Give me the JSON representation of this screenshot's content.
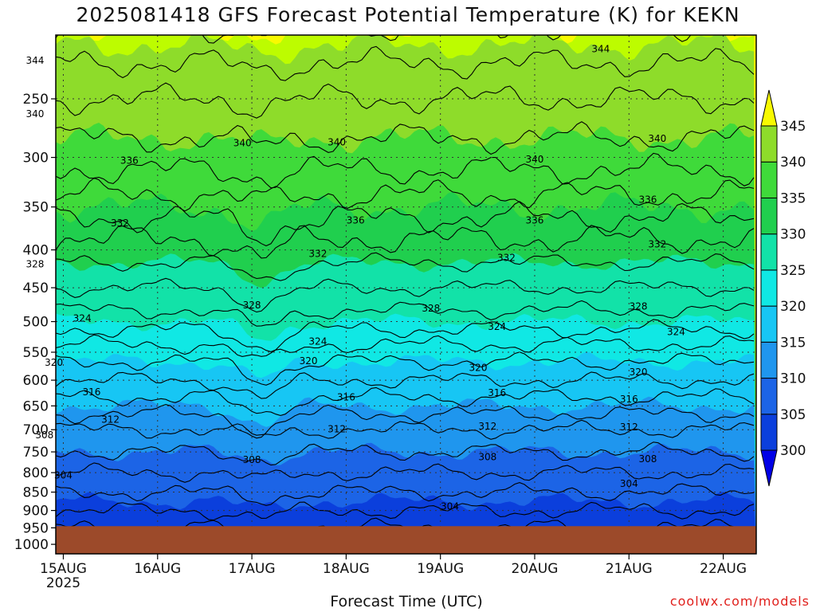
{
  "title": "2025081418 GFS Forecast Potential Temperature (K) for KEKN",
  "credit": "coolwx.com/models",
  "chart_data": {
    "type": "heatmap",
    "title": "2025081418 GFS Forecast Potential Temperature (K) for KEKN",
    "xlabel": "Forecast Time (UTC)",
    "ylabel": "",
    "y_scale": "log",
    "y_reversed": true,
    "ylim": [
      1030,
      205
    ],
    "y_ticks": [
      250,
      300,
      350,
      400,
      450,
      500,
      550,
      600,
      650,
      700,
      750,
      800,
      850,
      900,
      950,
      1000
    ],
    "x_ticks": [
      {
        "label": "15AUG",
        "sublabel": "2025",
        "day": 0
      },
      {
        "label": "16AUG",
        "sublabel": "",
        "day": 1
      },
      {
        "label": "17AUG",
        "sublabel": "",
        "day": 2
      },
      {
        "label": "18AUG",
        "sublabel": "",
        "day": 3
      },
      {
        "label": "19AUG",
        "sublabel": "",
        "day": 4
      },
      {
        "label": "20AUG",
        "sublabel": "",
        "day": 5
      },
      {
        "label": "21AUG",
        "sublabel": "",
        "day": 6
      },
      {
        "label": "22AUG",
        "sublabel": "",
        "day": 7
      }
    ],
    "xlim_days": [
      -0.08,
      7.35
    ],
    "ground_pressure": 945,
    "ground_color": "#9c4a2a",
    "grid": true,
    "colorbar": {
      "levels": [
        300,
        305,
        310,
        315,
        320,
        325,
        330,
        335,
        340,
        345
      ],
      "colors": [
        "#0000e6",
        "#0b3fdc",
        "#1c64e6",
        "#1f96ee",
        "#17c6f4",
        "#10e8e4",
        "#12e2a8",
        "#20cf4e",
        "#3fda3a",
        "#8edc2a",
        "#bdfc00",
        "#f8fa00"
      ],
      "under_color": "#0000e6",
      "over_color": "#f8fa00"
    },
    "isotherm_interval": 2,
    "level_profile": [
      {
        "p": 1000,
        "theta": 301
      },
      {
        "p": 950,
        "theta": 302
      },
      {
        "p": 900,
        "theta": 304
      },
      {
        "p": 850,
        "theta": 306
      },
      {
        "p": 800,
        "theta": 308
      },
      {
        "p": 750,
        "theta": 310
      },
      {
        "p": 700,
        "theta": 312
      },
      {
        "p": 650,
        "theta": 315
      },
      {
        "p": 600,
        "theta": 318
      },
      {
        "p": 550,
        "theta": 321
      },
      {
        "p": 500,
        "theta": 325
      },
      {
        "p": 450,
        "theta": 328
      },
      {
        "p": 400,
        "theta": 331
      },
      {
        "p": 350,
        "theta": 335
      },
      {
        "p": 300,
        "theta": 339
      },
      {
        "p": 250,
        "theta": 342
      },
      {
        "p": 200,
        "theta": 346
      }
    ],
    "contour_labels": [
      {
        "text": "344",
        "day": -0.3,
        "p": 222
      },
      {
        "text": "344",
        "day": 5.7,
        "p": 214
      },
      {
        "text": "340",
        "day": -0.3,
        "p": 262
      },
      {
        "text": "340",
        "day": 1.9,
        "p": 287
      },
      {
        "text": "340",
        "day": 2.9,
        "p": 286
      },
      {
        "text": "340",
        "day": 5.0,
        "p": 302
      },
      {
        "text": "340",
        "day": 6.3,
        "p": 283
      },
      {
        "text": "336",
        "day": 0.7,
        "p": 303
      },
      {
        "text": "336",
        "day": 3.1,
        "p": 365
      },
      {
        "text": "336",
        "day": 5.0,
        "p": 365
      },
      {
        "text": "336",
        "day": 6.2,
        "p": 342
      },
      {
        "text": "332",
        "day": 0.6,
        "p": 368
      },
      {
        "text": "332",
        "day": 2.7,
        "p": 405
      },
      {
        "text": "332",
        "day": 4.7,
        "p": 410
      },
      {
        "text": "332",
        "day": 6.3,
        "p": 393
      },
      {
        "text": "328",
        "day": -0.3,
        "p": 418
      },
      {
        "text": "328",
        "day": 2.0,
        "p": 475
      },
      {
        "text": "328",
        "day": 3.9,
        "p": 480
      },
      {
        "text": "328",
        "day": 6.1,
        "p": 477
      },
      {
        "text": "324",
        "day": 0.2,
        "p": 495
      },
      {
        "text": "324",
        "day": 2.7,
        "p": 532
      },
      {
        "text": "324",
        "day": 4.6,
        "p": 508
      },
      {
        "text": "324",
        "day": 6.5,
        "p": 516
      },
      {
        "text": "320",
        "day": -0.1,
        "p": 568
      },
      {
        "text": "320",
        "day": 2.6,
        "p": 565
      },
      {
        "text": "320",
        "day": 4.4,
        "p": 577
      },
      {
        "text": "320",
        "day": 6.1,
        "p": 585
      },
      {
        "text": "316",
        "day": 0.3,
        "p": 623
      },
      {
        "text": "316",
        "day": 3.0,
        "p": 633
      },
      {
        "text": "316",
        "day": 4.6,
        "p": 624
      },
      {
        "text": "316",
        "day": 6.0,
        "p": 637
      },
      {
        "text": "312",
        "day": 0.5,
        "p": 678
      },
      {
        "text": "312",
        "day": 2.9,
        "p": 699
      },
      {
        "text": "312",
        "day": 4.5,
        "p": 693
      },
      {
        "text": "312",
        "day": 6.0,
        "p": 694
      },
      {
        "text": "308",
        "day": -0.2,
        "p": 712
      },
      {
        "text": "308",
        "day": 2.0,
        "p": 769
      },
      {
        "text": "308",
        "day": 4.5,
        "p": 762
      },
      {
        "text": "308",
        "day": 6.2,
        "p": 767
      },
      {
        "text": "304",
        "day": 0.0,
        "p": 807
      },
      {
        "text": "304",
        "day": 6.0,
        "p": 828
      },
      {
        "text": "304",
        "day": 4.1,
        "p": 889
      }
    ]
  }
}
